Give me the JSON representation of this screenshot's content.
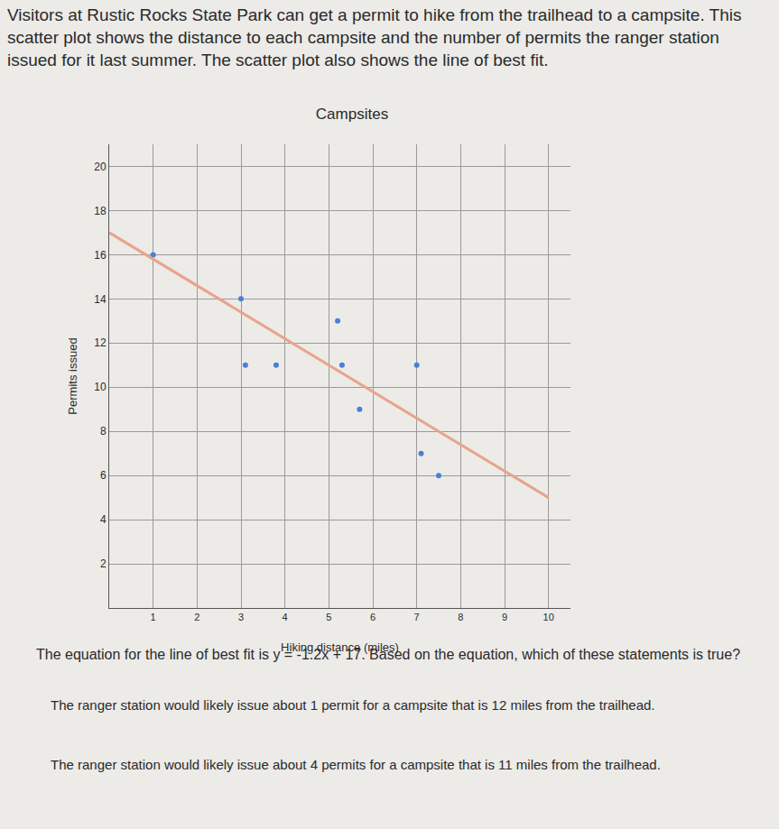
{
  "intro": "Visitors at Rustic Rocks State Park can get a permit to hike from the trailhead to a campsite. This scatter plot shows the distance to each campsite and the number of permits the ranger station issued for it last summer. The scatter plot also shows the line of best fit.",
  "chart_data": {
    "type": "scatter",
    "title": "Campsites",
    "x_label": "Hiking distance (miles)",
    "y_label": "Permits issued",
    "series": [
      {
        "type": "scatter",
        "color": "#4a7fd4",
        "marker": "circle",
        "x": [
          1,
          3,
          5.2,
          3.1,
          3.8,
          5.3,
          7,
          5.7,
          7.1,
          7.5
        ],
        "values": [
          16,
          14,
          13,
          11,
          11,
          11,
          11,
          9,
          7,
          6
        ]
      },
      {
        "type": "line",
        "color": "#e8a48a",
        "line_style": "solid",
        "x": [
          0,
          10
        ],
        "values": [
          17,
          5
        ]
      }
    ],
    "xlim": [
      0,
      10.5
    ],
    "xticks": [
      1,
      2,
      3,
      4,
      5,
      6,
      7,
      8,
      9,
      10
    ],
    "ylim": [
      0,
      21
    ],
    "yticks": [
      2,
      4,
      6,
      8,
      10,
      12,
      14,
      16,
      18,
      20
    ],
    "grid": true
  },
  "question": "The equation for the line of best fit is y = -1.2x + 17. Based on the equation, which of these statements is true?",
  "options": [
    "The ranger station would likely issue about 1 permit for a campsite that is 12 miles from the trailhead.",
    "The ranger station would likely issue about 4 permits for a campsite that is 11 miles from the trailhead."
  ]
}
